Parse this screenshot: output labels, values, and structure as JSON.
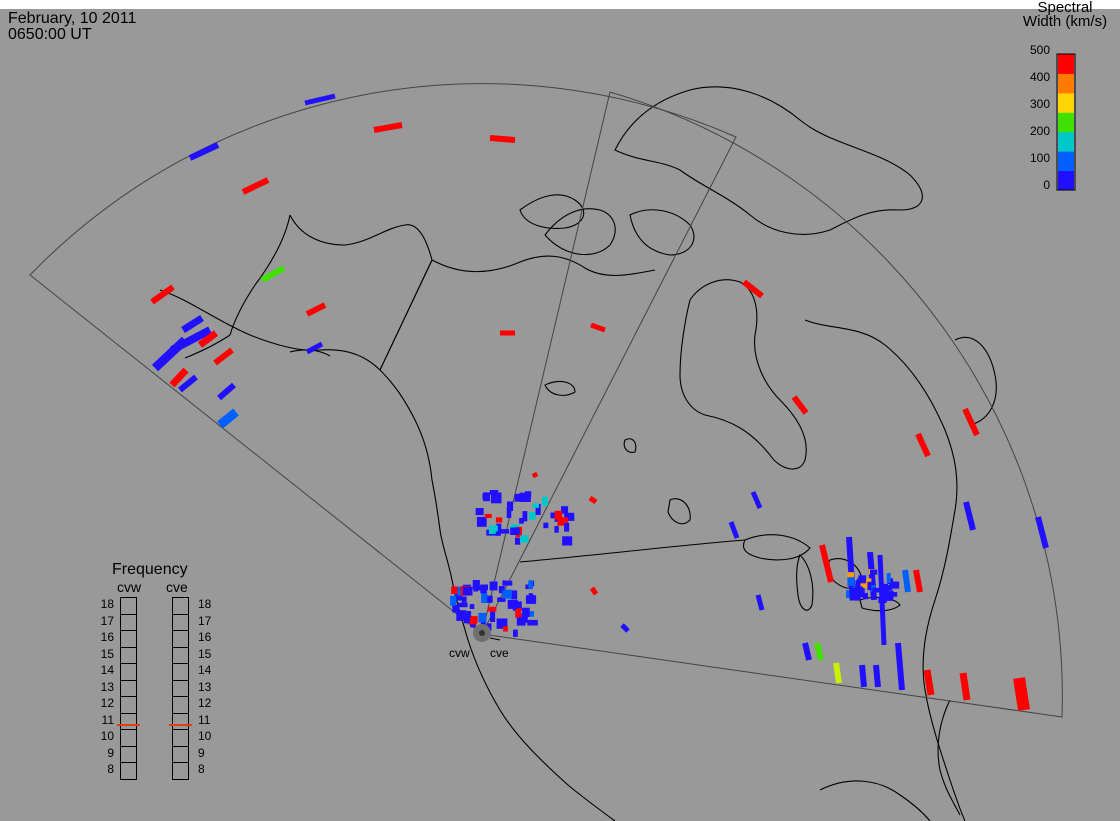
{
  "header": {
    "date": "February, 10 2011",
    "time": "0650:00 UT"
  },
  "colorbar": {
    "title_line1": "Spectral",
    "title_line2": "Width (km/s)",
    "ticks": [
      "500",
      "400",
      "300",
      "200",
      "100",
      "0"
    ],
    "colors": [
      "#ff0000",
      "#ff7a00",
      "#ffd400",
      "#40e000",
      "#00c8c8",
      "#0060ff",
      "#2010ff"
    ]
  },
  "frequency": {
    "title": "Frequency",
    "radars": [
      "cvw",
      "cve"
    ],
    "labels": [
      "18",
      "17",
      "16",
      "15",
      "14",
      "13",
      "12",
      "11",
      "10",
      "9",
      "8"
    ],
    "current_mhz": [
      10.8,
      10.8
    ]
  },
  "sites": [
    "cvw",
    "cve"
  ]
}
